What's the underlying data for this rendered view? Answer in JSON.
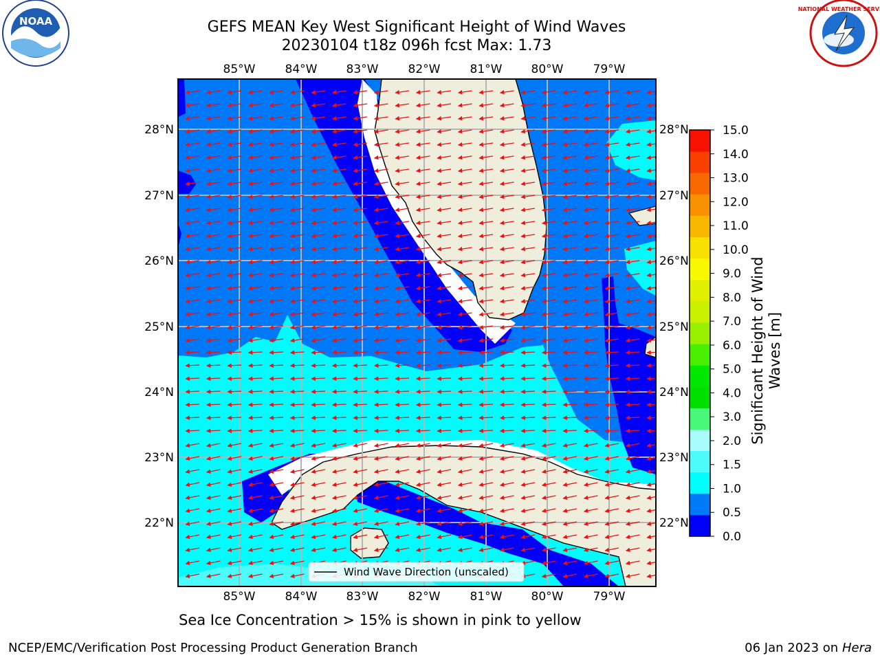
{
  "title": {
    "line1": "GEFS MEAN Key West Significant Height of Wind Waves",
    "line2": "20230104 t18z 096h fcst   Max: 1.73"
  },
  "map": {
    "lon_labels": [
      "85°W",
      "84°W",
      "83°W",
      "82°W",
      "81°W",
      "80°W",
      "79°W"
    ],
    "lat_labels": [
      "28°N",
      "27°N",
      "26°N",
      "25°N",
      "24°N",
      "23°N",
      "22°N"
    ],
    "legend_label": "Wind Wave Direction (unscaled)",
    "colors": {
      "land": "#efeedd",
      "band_0_0_5": "#0000f8",
      "band_0_5_1_0": "#0079f8",
      "band_1_0_1_5": "#00fcfc",
      "band_1_5_2_0": "#4cfcfc",
      "arrow": "#ee1111",
      "grid": "#b5b5b5"
    }
  },
  "colorbar": {
    "ticks": [
      "15.0",
      "14.0",
      "13.0",
      "12.0",
      "11.0",
      "10.0",
      "9.0",
      "8.0",
      "7.0",
      "6.0",
      "5.0",
      "4.0",
      "3.0",
      "2.0",
      "1.5",
      "1.0",
      "0.5",
      "0.0"
    ],
    "label_line1": "Significant Height of Wind",
    "label_line2": "Waves [m]",
    "colors": [
      "#0000f8",
      "#0079f8",
      "#00fcfc",
      "#4cfcfc",
      "#a8fcfc",
      "#48f878",
      "#00e000",
      "#00e800",
      "#48f000",
      "#98f000",
      "#c8f000",
      "#e0f000",
      "#f8f800",
      "#f8e000",
      "#f8b800",
      "#f89000",
      "#f86800",
      "#f84000",
      "#f81000"
    ]
  },
  "caption": "Sea Ice Concentration > 15% is shown in pink to yellow",
  "footer": {
    "left": "NCEP/EMC/Verification Post Processing Product Generation Branch",
    "right_date": "06 Jan 2023 on ",
    "right_host": "Hera"
  },
  "logos": {
    "noaa_text": "NOAA",
    "nws_ring_text": "NATIONAL WEATHER SERVICE"
  }
}
